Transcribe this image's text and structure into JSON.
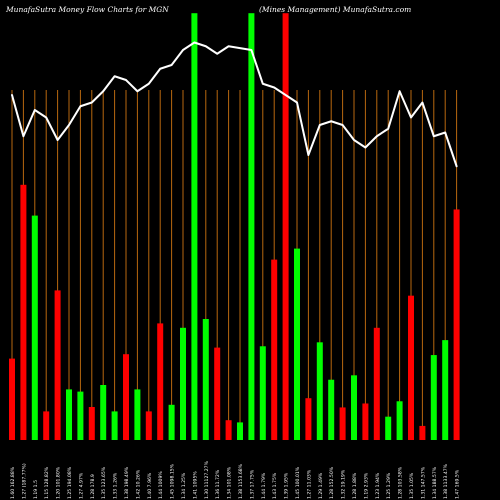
{
  "header": {
    "title_left": "MunafaSutra  Money Flow  Charts for MGN",
    "title_right": "(Mines Management) MunafaSutra.com"
  },
  "colors": {
    "background": "#000000",
    "up_bar": "#00ff00",
    "down_bar": "#ff0000",
    "divider": "#b8680f",
    "line": "#ffffff"
  },
  "chart_data": {
    "type": "bar",
    "title": "MunafaSutra  Money Flow  Charts for MGN (Mines Management) MunafaSutra.com",
    "grid": true,
    "categories": [
      "1.60 162.88%",
      "1.27 (187.77%)",
      "1.19 1.5",
      "1.15 128.82%",
      "1.20 101.80%",
      "1.25 194.08%",
      "1.27 4.97%",
      "1.28 178.9",
      "1.35 123.65%",
      "1.33 1.26%",
      "1.38 198.49%",
      "1.42 10.26%",
      "1.40 7.96%",
      "1.44 1009%",
      "1.45 1098.15%",
      "1.34 1.25%",
      "1.41 1095%",
      "1.30 11127.27%",
      "1.36 11.72%",
      "1.34 101.08%",
      "1.38 1153.68%",
      "1.37 17.75%",
      "1.44 1.79%",
      "1.43 1.75%",
      "1.39 1.95%",
      "1.45 100.01%",
      "1.27 11.03%",
      "1.29 1.49%",
      "1.28 152.50%",
      "1.32 19.19%",
      "1.28 1.88%",
      "1.19 2.93%",
      "1.23 1.94%",
      "1.25 1.29%",
      "1.28 103.58%",
      "1.35 1.05%",
      "1.31 147.57%",
      "1.34 188.57%",
      "1.38 1133.47%",
      "1.47 169.5%"
    ],
    "bar_direction": [
      "down",
      "down",
      "up",
      "down",
      "down",
      "up",
      "up",
      "down",
      "up",
      "up",
      "down",
      "up",
      "down",
      "down",
      "up",
      "up",
      "up",
      "up",
      "down",
      "down",
      "up",
      "up",
      "up",
      "down",
      "down",
      "up",
      "down",
      "up",
      "up",
      "down",
      "up",
      "down",
      "down",
      "up",
      "up",
      "down",
      "down",
      "up",
      "up",
      "down"
    ],
    "bar_values": [
      18.5,
      58,
      51,
      6.5,
      34,
      11.5,
      11,
      7.5,
      12.5,
      6.5,
      19.5,
      11.5,
      6.5,
      26.5,
      8,
      25.5,
      97,
      27.5,
      21,
      4.5,
      4,
      97,
      21.3,
      41,
      97,
      43.5,
      9.5,
      22.2,
      13.7,
      7.4,
      14.7,
      8.3,
      25.5,
      5.3,
      8.8,
      32.8,
      3.2,
      19.3,
      22.7,
      52.4
    ],
    "line_values": [
      92,
      81,
      88,
      86,
      80,
      84,
      89,
      90,
      93,
      97,
      96,
      93,
      95,
      99,
      100,
      104,
      106,
      105,
      103,
      105,
      104.5,
      104,
      95,
      94,
      92,
      90,
      76,
      84,
      85,
      84,
      80,
      78,
      81,
      83,
      93,
      86,
      90,
      81,
      82,
      73
    ],
    "ylim": [
      0,
      100
    ],
    "line_ylim": [
      0,
      108
    ],
    "xlabel": "",
    "ylabel": ""
  }
}
